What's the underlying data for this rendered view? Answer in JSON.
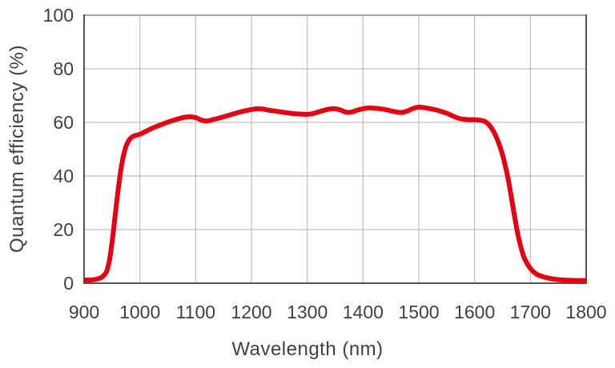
{
  "chart_data": {
    "type": "line",
    "title": "",
    "xlabel": "Wavelength (nm)",
    "ylabel": "Quantum efficiency (%)",
    "xlim": [
      900,
      1800
    ],
    "ylim": [
      0,
      100
    ],
    "x_ticks": [
      900,
      1000,
      1100,
      1200,
      1300,
      1400,
      1500,
      1600,
      1700,
      1800
    ],
    "y_ticks": [
      0,
      20,
      40,
      60,
      80,
      100
    ],
    "grid": true,
    "legend_position": "none",
    "series": [
      {
        "name": "quantum-efficiency",
        "color": "#e60012",
        "x": [
          900,
          910,
          920,
          930,
          935,
          940,
          945,
          950,
          955,
          960,
          965,
          970,
          975,
          980,
          985,
          990,
          1000,
          1010,
          1020,
          1030,
          1040,
          1050,
          1060,
          1070,
          1080,
          1090,
          1100,
          1110,
          1120,
          1130,
          1140,
          1150,
          1160,
          1170,
          1180,
          1190,
          1200,
          1210,
          1220,
          1230,
          1240,
          1250,
          1260,
          1270,
          1280,
          1290,
          1300,
          1310,
          1320,
          1330,
          1340,
          1350,
          1360,
          1370,
          1380,
          1390,
          1400,
          1410,
          1420,
          1430,
          1440,
          1450,
          1460,
          1470,
          1480,
          1490,
          1500,
          1510,
          1520,
          1530,
          1540,
          1550,
          1560,
          1570,
          1580,
          1590,
          1600,
          1610,
          1620,
          1630,
          1640,
          1650,
          1660,
          1670,
          1675,
          1680,
          1685,
          1690,
          1700,
          1710,
          1720,
          1730,
          1740,
          1750,
          1760,
          1770,
          1780,
          1790,
          1800
        ],
        "y": [
          1.2,
          1.2,
          1.4,
          2.0,
          2.8,
          4.2,
          8,
          15,
          24,
          33,
          41,
          47,
          51,
          53.2,
          54.4,
          55.0,
          55.6,
          56.6,
          57.6,
          58.5,
          59.3,
          60.1,
          60.8,
          61.4,
          61.9,
          62.1,
          61.8,
          60.9,
          60.5,
          61.0,
          61.5,
          62.1,
          62.7,
          63.3,
          63.9,
          64.4,
          64.8,
          65.1,
          65.0,
          64.6,
          64.3,
          64.0,
          63.7,
          63.4,
          63.2,
          63.1,
          63.0,
          63.3,
          63.9,
          64.5,
          65.0,
          65.1,
          64.6,
          63.8,
          63.9,
          64.6,
          65.1,
          65.4,
          65.3,
          65.1,
          64.8,
          64.3,
          63.9,
          63.7,
          64.3,
          65.2,
          65.7,
          65.5,
          65.1,
          64.7,
          64.1,
          63.4,
          62.5,
          61.6,
          61.2,
          61.0,
          61.0,
          60.8,
          60.2,
          58.0,
          54.0,
          48.0,
          39.0,
          27.0,
          21.0,
          16.0,
          12.0,
          9.0,
          5.5,
          3.5,
          2.6,
          2.0,
          1.6,
          1.3,
          1.2,
          1.1,
          1.0,
          1.0,
          1.0
        ]
      }
    ]
  },
  "style_colors": {
    "line_red": "#e60012",
    "gridline": "#b4b2b2",
    "frame_dark": "#565251",
    "frame_top": "#a8a5a4",
    "text": "#433f3e",
    "background": "#ffffff"
  }
}
